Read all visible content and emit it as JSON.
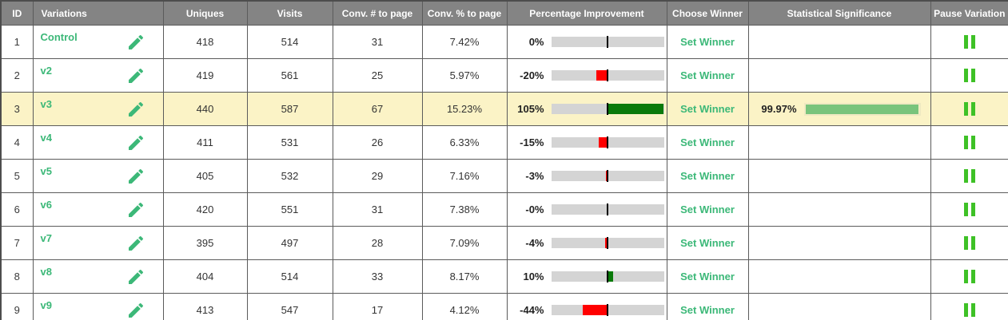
{
  "table": {
    "columns": [
      {
        "key": "id",
        "label": "ID"
      },
      {
        "key": "variations",
        "label": "Variations"
      },
      {
        "key": "uniques",
        "label": "Uniques"
      },
      {
        "key": "visits",
        "label": "Visits"
      },
      {
        "key": "conv_num",
        "label": "Conv. # to page"
      },
      {
        "key": "conv_pct",
        "label": "Conv. % to page"
      },
      {
        "key": "improvement",
        "label": "Percentage Improvement"
      },
      {
        "key": "choose_winner",
        "label": "Choose Winner"
      },
      {
        "key": "significance",
        "label": "Statistical Significance"
      },
      {
        "key": "pause",
        "label": "Pause Variation"
      }
    ],
    "set_winner_label": "Set Winner",
    "rows": [
      {
        "id": "1",
        "name": "Control",
        "uniques": "418",
        "visits": "514",
        "conv_num": "31",
        "conv_pct": "7.42%",
        "improvement_label": "0%",
        "improvement_value": 0,
        "significance_label": "",
        "significance_value": null,
        "highlighted": false
      },
      {
        "id": "2",
        "name": "v2",
        "uniques": "419",
        "visits": "561",
        "conv_num": "25",
        "conv_pct": "5.97%",
        "improvement_label": "-20%",
        "improvement_value": -20,
        "significance_label": "",
        "significance_value": null,
        "highlighted": false
      },
      {
        "id": "3",
        "name": "v3",
        "uniques": "440",
        "visits": "587",
        "conv_num": "67",
        "conv_pct": "15.23%",
        "improvement_label": "105%",
        "improvement_value": 105,
        "significance_label": "99.97%",
        "significance_value": 99.97,
        "highlighted": true
      },
      {
        "id": "4",
        "name": "v4",
        "uniques": "411",
        "visits": "531",
        "conv_num": "26",
        "conv_pct": "6.33%",
        "improvement_label": "-15%",
        "improvement_value": -15,
        "significance_label": "",
        "significance_value": null,
        "highlighted": false
      },
      {
        "id": "5",
        "name": "v5",
        "uniques": "405",
        "visits": "532",
        "conv_num": "29",
        "conv_pct": "7.16%",
        "improvement_label": "-3%",
        "improvement_value": -3,
        "significance_label": "",
        "significance_value": null,
        "highlighted": false
      },
      {
        "id": "6",
        "name": "v6",
        "uniques": "420",
        "visits": "551",
        "conv_num": "31",
        "conv_pct": "7.38%",
        "improvement_label": "-0%",
        "improvement_value": 0,
        "significance_label": "",
        "significance_value": null,
        "highlighted": false
      },
      {
        "id": "7",
        "name": "v7",
        "uniques": "395",
        "visits": "497",
        "conv_num": "28",
        "conv_pct": "7.09%",
        "improvement_label": "-4%",
        "improvement_value": -4,
        "significance_label": "",
        "significance_value": null,
        "highlighted": false
      },
      {
        "id": "8",
        "name": "v8",
        "uniques": "404",
        "visits": "514",
        "conv_num": "33",
        "conv_pct": "8.17%",
        "improvement_label": "10%",
        "improvement_value": 10,
        "significance_label": "",
        "significance_value": null,
        "highlighted": false
      },
      {
        "id": "9",
        "name": "v9",
        "uniques": "413",
        "visits": "547",
        "conv_num": "17",
        "conv_pct": "4.12%",
        "improvement_label": "-44%",
        "improvement_value": -44,
        "significance_label": "",
        "significance_value": null,
        "highlighted": false
      }
    ]
  },
  "icons": {
    "edit": "edit-pencil-icon",
    "pause": "pause-icon"
  },
  "colors": {
    "header_bg": "#848484",
    "accent_green_text": "#3cb878",
    "pause_green": "#3ec126",
    "improvement_positive": "#0a7a0a",
    "improvement_negative": "#ff0000",
    "improvement_track": "#d4d4d4",
    "significance_bar": "#79c47c",
    "highlight_row_bg": "#fbf3c6"
  }
}
